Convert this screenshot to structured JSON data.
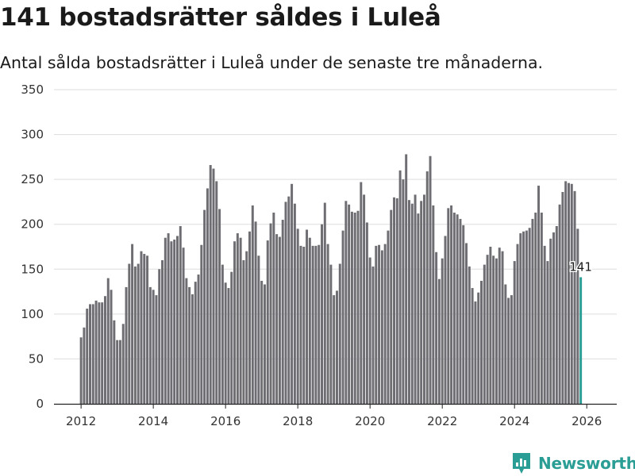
{
  "header": {
    "title": "141 bostadsrätter såldes i Luleå",
    "subtitle": "Antal sålda bostadsrätter i Luleå under de senaste tre månaderna."
  },
  "brand": {
    "name": "Newsworthy",
    "logo_icon": "newsworthy-logo-icon",
    "color": "#2a9d94"
  },
  "colors": {
    "bar": "#6e6d72",
    "highlight": "#2a9d94",
    "grid": "#dddddd",
    "axis": "#222222"
  },
  "chart_data": {
    "type": "bar",
    "title": "141 bostadsrätter såldes i Luleå",
    "subtitle": "Antal sålda bostadsrätter i Luleå under de senaste tre månaderna.",
    "xlabel": "",
    "ylabel": "",
    "ylim": [
      0,
      350
    ],
    "yticks": [
      0,
      50,
      100,
      150,
      200,
      250,
      300,
      350
    ],
    "xlim": [
      2011.25,
      2026.83
    ],
    "xticks": [
      2012,
      2014,
      2016,
      2018,
      2020,
      2022,
      2024,
      2026
    ],
    "start": {
      "year": 2012,
      "month": 1
    },
    "highlight_last": true,
    "last_label": "141",
    "values": [
      74,
      85,
      106,
      111,
      111,
      115,
      113,
      113,
      120,
      140,
      127,
      93,
      71,
      71,
      89,
      130,
      156,
      178,
      153,
      156,
      170,
      167,
      165,
      130,
      127,
      121,
      150,
      160,
      185,
      190,
      181,
      183,
      187,
      198,
      174,
      140,
      130,
      122,
      136,
      144,
      177,
      216,
      240,
      266,
      262,
      248,
      217,
      155,
      135,
      129,
      147,
      181,
      190,
      185,
      160,
      170,
      192,
      221,
      203,
      165,
      137,
      133,
      182,
      201,
      213,
      189,
      186,
      205,
      225,
      231,
      245,
      223,
      195,
      176,
      175,
      194,
      185,
      176,
      176,
      177,
      200,
      224,
      178,
      155,
      121,
      126,
      156,
      193,
      226,
      222,
      214,
      213,
      215,
      247,
      233,
      202,
      163,
      153,
      176,
      177,
      171,
      178,
      193,
      216,
      230,
      229,
      260,
      250,
      278,
      227,
      223,
      233,
      212,
      226,
      233,
      259,
      276,
      221,
      169,
      139,
      162,
      187,
      218,
      221,
      213,
      211,
      206,
      199,
      179,
      153,
      129,
      114,
      124,
      137,
      155,
      166,
      175,
      165,
      162,
      174,
      170,
      133,
      118,
      121,
      159,
      178,
      190,
      192,
      193,
      196,
      206,
      213,
      243,
      213,
      176,
      159,
      184,
      191,
      198,
      222,
      236,
      248,
      246,
      245,
      237,
      195,
      141
    ]
  }
}
